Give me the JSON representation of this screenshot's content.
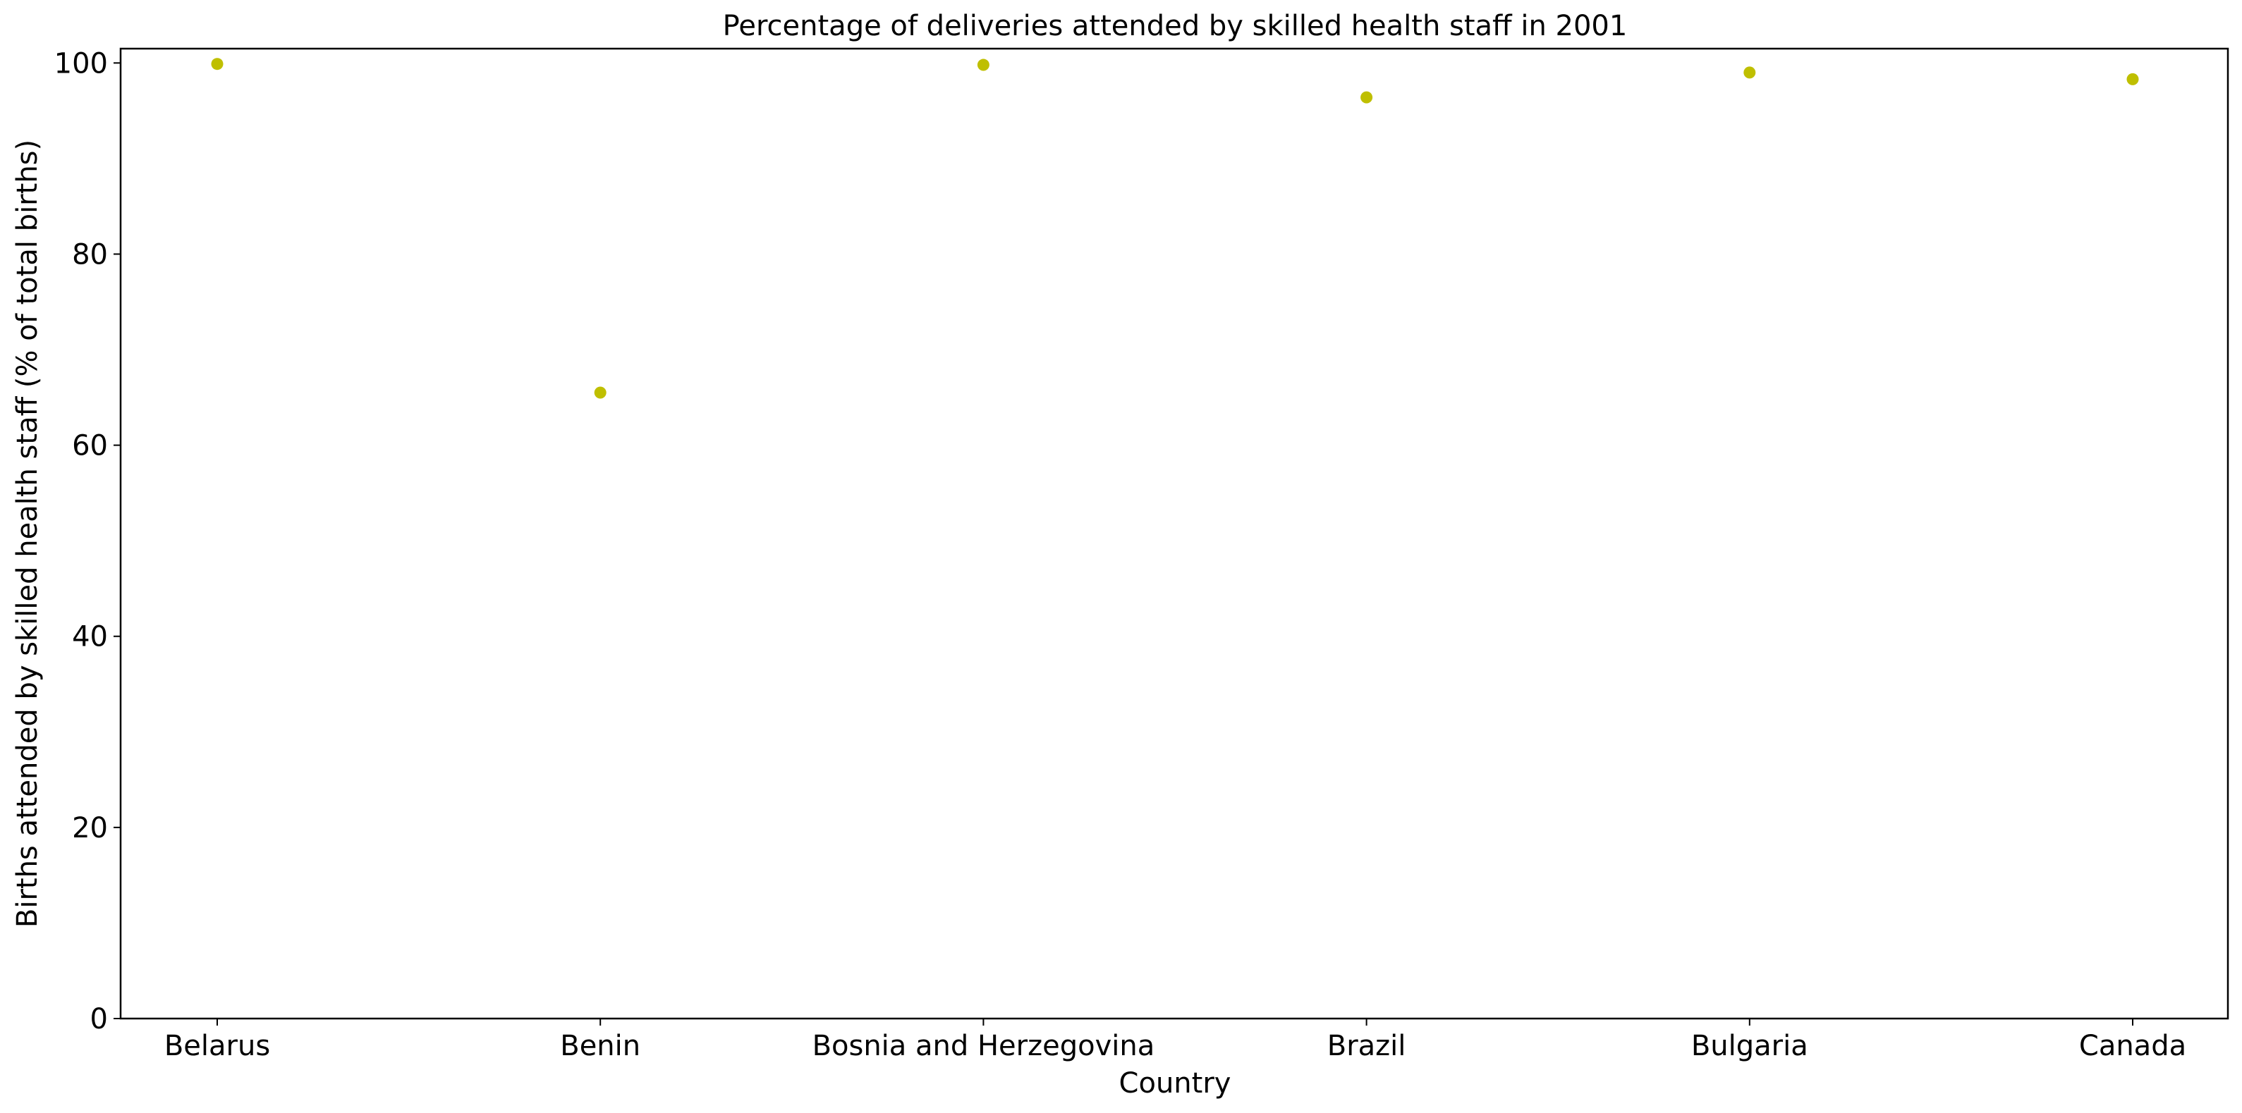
{
  "chart_data": {
    "type": "scatter",
    "title": "Percentage of deliveries attended by skilled health staff in 2001",
    "xlabel": "Country",
    "ylabel": "Births attended by skilled health staff (% of total births)",
    "categories": [
      "Belarus",
      "Benin",
      "Bosnia and Herzegovina",
      "Brazil",
      "Bulgaria",
      "Canada"
    ],
    "series": [
      {
        "values": [
          99.9,
          65.5,
          99.8,
          96.4,
          99.0,
          98.3
        ],
        "color": "#bfbf00"
      }
    ],
    "ylim": [
      0,
      101.5
    ],
    "yticks": [
      0,
      20,
      40,
      60,
      80,
      100
    ],
    "grid": false
  }
}
